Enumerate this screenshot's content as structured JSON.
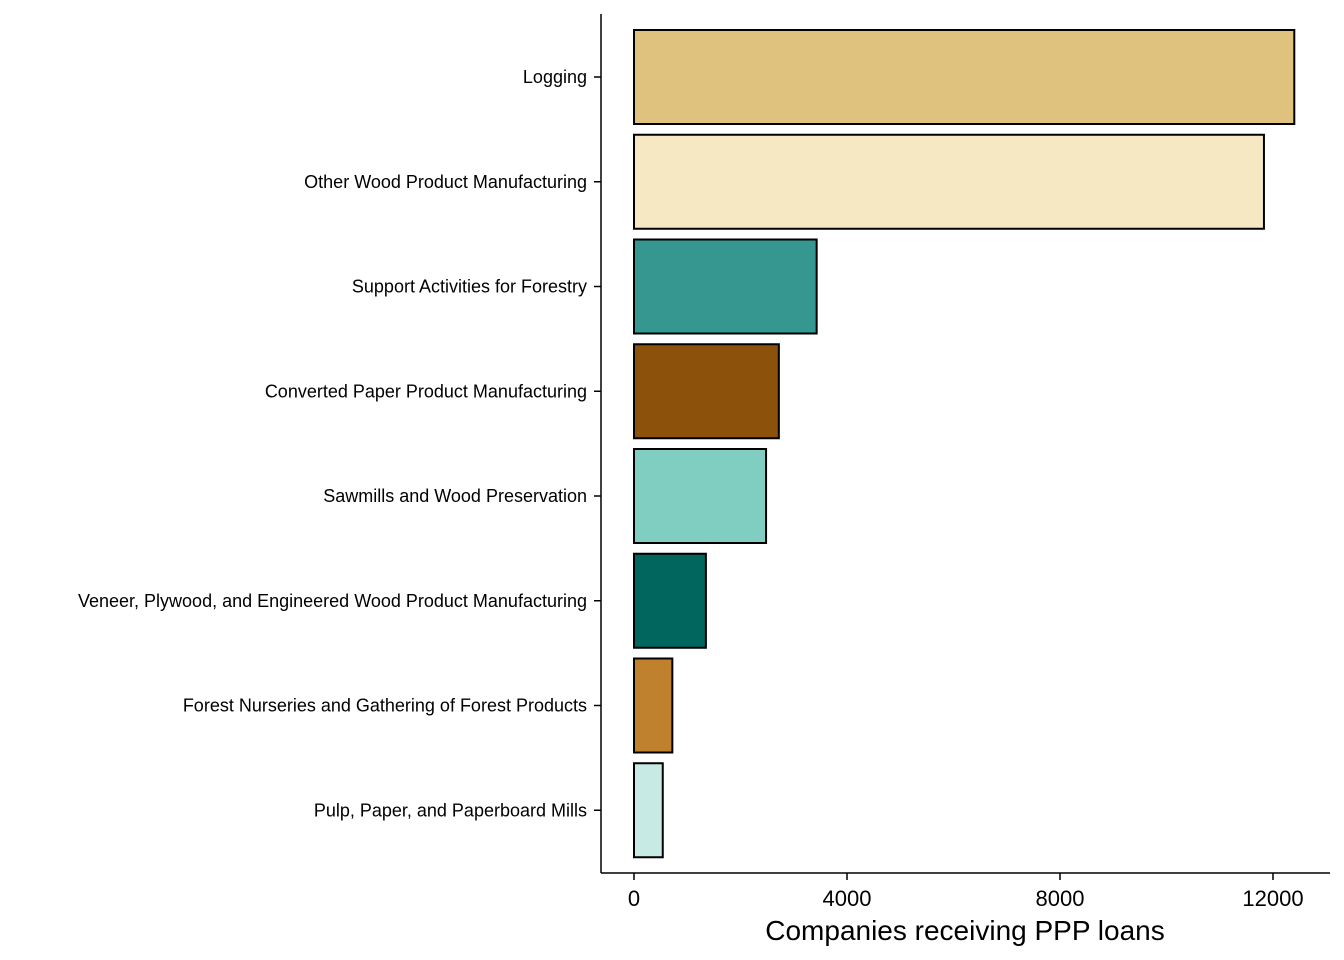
{
  "chart_data": {
    "type": "bar",
    "orientation": "horizontal",
    "title": "",
    "xlabel": "Companies receiving PPP loans",
    "ylabel": "",
    "xlim": [
      -600,
      13000
    ],
    "xticks": [
      0,
      4000,
      8000,
      12000
    ],
    "xtick_labels": [
      "0",
      "4000",
      "8000",
      "12000"
    ],
    "grid": false,
    "legend": "none",
    "categories": [
      "Logging",
      "Other Wood Product Manufacturing",
      "Support Activities for Forestry",
      "Converted Paper Product Manufacturing",
      "Sawmills and Wood Preservation",
      "Veneer, Plywood, and Engineered Wood Product Manufacturing",
      "Forest Nurseries and Gathering of Forest Products",
      "Pulp, Paper, and Paperboard Mills"
    ],
    "values": [
      12400,
      11830,
      3430,
      2720,
      2480,
      1350,
      720,
      540
    ],
    "colors": [
      "#DFC27D",
      "#F6E8C3",
      "#35978F",
      "#8C510A",
      "#80CDC1",
      "#01665E",
      "#BF812D",
      "#C7EAE5"
    ]
  }
}
